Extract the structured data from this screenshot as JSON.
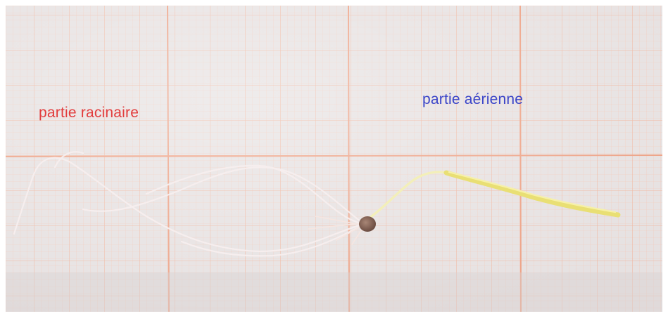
{
  "labels": {
    "root_part": "partie racinaire",
    "aerial_part": "partie aérienne"
  },
  "colors": {
    "root_label": "#e23c3c",
    "aerial_label": "#3b45c8",
    "grid_line": "#f0b7a0",
    "grid_major": "#ec9f80",
    "paper": "#e7e3e3",
    "shoot": "#e8e07a",
    "seed": "#8a6a5c",
    "root": "#f4ecec"
  }
}
